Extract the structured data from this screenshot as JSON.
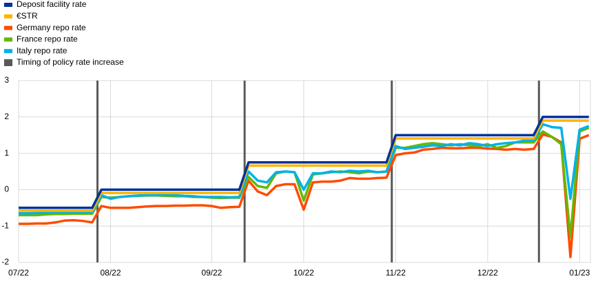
{
  "chart_data": {
    "type": "line",
    "categories": [
      "07/22",
      null,
      null,
      null,
      null,
      null,
      null,
      null,
      null,
      null,
      "08/22",
      null,
      null,
      null,
      null,
      null,
      null,
      null,
      null,
      null,
      null,
      "09/22",
      null,
      null,
      null,
      null,
      null,
      null,
      null,
      null,
      null,
      "10/22",
      null,
      null,
      null,
      null,
      null,
      null,
      null,
      null,
      null,
      "11/22",
      null,
      null,
      null,
      null,
      null,
      null,
      null,
      null,
      null,
      "12/22",
      null,
      null,
      null,
      null,
      null,
      null,
      null,
      null,
      null,
      "01/23",
      null
    ],
    "series": [
      {
        "name": "Deposit facility rate",
        "color": "#003299",
        "values": [
          -0.5,
          -0.5,
          -0.5,
          -0.5,
          -0.5,
          -0.5,
          -0.5,
          -0.5,
          -0.5,
          0,
          0,
          0,
          0,
          0,
          0,
          0,
          0,
          0,
          0,
          0,
          0,
          0,
          0,
          0,
          0,
          0.75,
          0.75,
          0.75,
          0.75,
          0.75,
          0.75,
          0.75,
          0.75,
          0.75,
          0.75,
          0.75,
          0.75,
          0.75,
          0.75,
          0.75,
          0.75,
          1.5,
          1.5,
          1.5,
          1.5,
          1.5,
          1.5,
          1.5,
          1.5,
          1.5,
          1.5,
          1.5,
          1.5,
          1.5,
          1.5,
          1.5,
          1.5,
          2,
          2,
          2,
          2,
          2,
          2
        ]
      },
      {
        "name": "€STR",
        "color": "#ffb400",
        "values": [
          -0.58,
          -0.58,
          -0.58,
          -0.58,
          -0.58,
          -0.58,
          -0.58,
          -0.58,
          -0.58,
          -0.09,
          -0.09,
          -0.09,
          -0.09,
          -0.09,
          -0.09,
          -0.09,
          -0.09,
          -0.09,
          -0.09,
          -0.09,
          -0.09,
          -0.09,
          -0.09,
          -0.09,
          -0.09,
          0.66,
          0.66,
          0.66,
          0.66,
          0.66,
          0.66,
          0.66,
          0.66,
          0.66,
          0.66,
          0.66,
          0.66,
          0.66,
          0.66,
          0.66,
          0.66,
          1.41,
          1.41,
          1.41,
          1.41,
          1.41,
          1.41,
          1.41,
          1.41,
          1.41,
          1.41,
          1.41,
          1.41,
          1.41,
          1.41,
          1.41,
          1.41,
          1.9,
          1.9,
          1.9,
          1.9,
          1.9,
          1.9
        ]
      },
      {
        "name": "Germany repo rate",
        "color": "#ff4b00",
        "values": [
          -0.94,
          -0.94,
          -0.93,
          -0.93,
          -0.9,
          -0.85,
          -0.84,
          -0.86,
          -0.9,
          -0.45,
          -0.5,
          -0.5,
          -0.5,
          -0.48,
          -0.46,
          -0.45,
          -0.45,
          -0.44,
          -0.44,
          -0.43,
          -0.43,
          -0.45,
          -0.5,
          -0.48,
          -0.47,
          0.25,
          -0.05,
          -0.15,
          0.1,
          0.15,
          0.15,
          -0.55,
          0.2,
          0.22,
          0.22,
          0.25,
          0.32,
          0.3,
          0.3,
          0.32,
          0.33,
          0.95,
          1.0,
          1.02,
          1.1,
          1.12,
          1.15,
          1.14,
          1.14,
          1.15,
          1.15,
          1.13,
          1.12,
          1.1,
          1.12,
          1.1,
          1.12,
          1.52,
          1.45,
          1.3,
          -1.85,
          1.4,
          1.5
        ]
      },
      {
        "name": "France repo rate",
        "color": "#65b800",
        "values": [
          -0.7,
          -0.7,
          -0.7,
          -0.68,
          -0.67,
          -0.67,
          -0.66,
          -0.66,
          -0.66,
          -0.2,
          -0.22,
          -0.2,
          -0.18,
          -0.17,
          -0.16,
          -0.16,
          -0.17,
          -0.18,
          -0.18,
          -0.2,
          -0.2,
          -0.22,
          -0.23,
          -0.22,
          -0.22,
          0.35,
          0.1,
          0.05,
          0.45,
          0.5,
          0.48,
          -0.3,
          0.42,
          0.45,
          0.48,
          0.5,
          0.48,
          0.45,
          0.5,
          0.48,
          0.5,
          1.15,
          1.15,
          1.2,
          1.25,
          1.28,
          1.25,
          1.22,
          1.25,
          1.22,
          1.2,
          1.25,
          1.15,
          1.2,
          1.3,
          1.3,
          1.3,
          1.6,
          1.45,
          1.25,
          -1.3,
          1.6,
          1.7
        ]
      },
      {
        "name": "Italy repo rate",
        "color": "#00b1ea",
        "values": [
          -0.65,
          -0.65,
          -0.64,
          -0.63,
          -0.62,
          -0.62,
          -0.62,
          -0.62,
          -0.62,
          -0.15,
          -0.25,
          -0.2,
          -0.18,
          -0.16,
          -0.15,
          -0.15,
          -0.14,
          -0.15,
          -0.17,
          -0.18,
          -0.2,
          -0.2,
          -0.2,
          -0.21,
          -0.2,
          0.5,
          0.25,
          0.2,
          0.48,
          0.5,
          0.48,
          0.0,
          0.45,
          0.45,
          0.5,
          0.48,
          0.52,
          0.5,
          0.52,
          0.48,
          0.5,
          1.2,
          1.12,
          1.15,
          1.18,
          1.22,
          1.2,
          1.25,
          1.22,
          1.28,
          1.25,
          1.2,
          1.25,
          1.28,
          1.3,
          1.35,
          1.35,
          1.8,
          1.72,
          1.7,
          -0.25,
          1.65,
          1.75
        ]
      }
    ],
    "events": {
      "name": "Timing of policy rate increase",
      "color": "#595959",
      "category_index": [
        9,
        25,
        41,
        57
      ]
    },
    "ylim": [
      -2,
      3
    ],
    "yticks": [
      -2,
      -1,
      0,
      1,
      2,
      3
    ],
    "grid": true
  }
}
